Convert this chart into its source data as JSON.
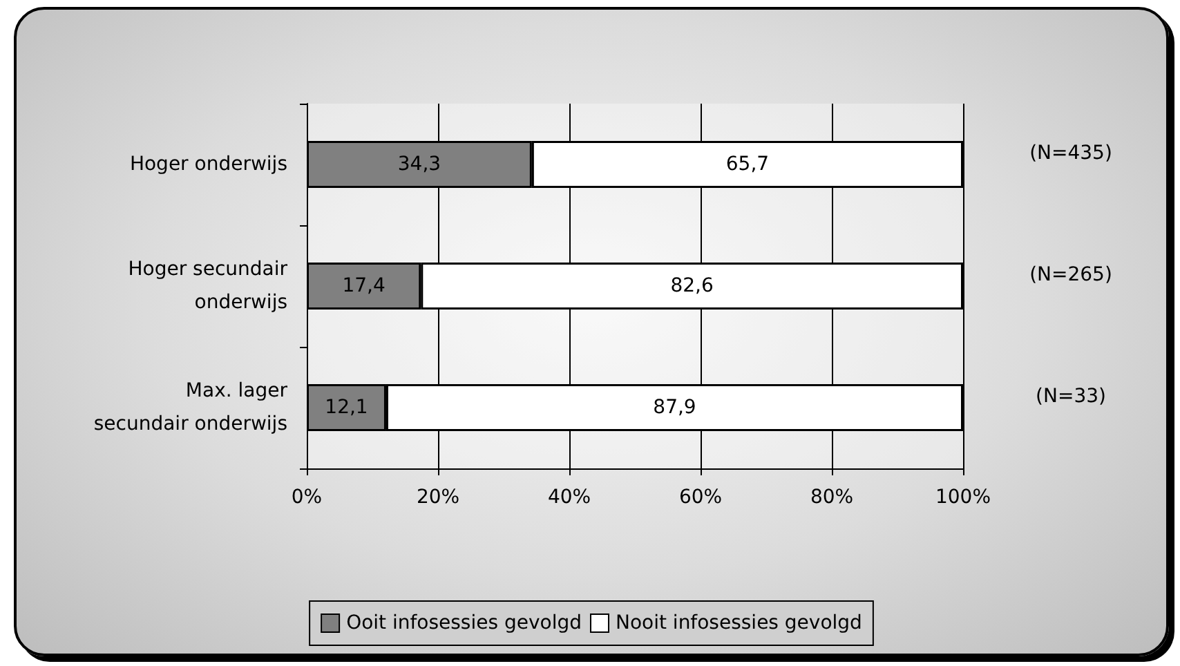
{
  "chart_data": {
    "type": "bar",
    "orientation": "horizontal",
    "stacked": true,
    "categories": [
      "Hoger onderwijs",
      "Hoger secundair onderwijs",
      "Max. lager secundair onderwijs"
    ],
    "series": [
      {
        "name": "Ooit infosessies gevolgd",
        "color": "#808080",
        "values": [
          34.3,
          17.4,
          12.1
        ],
        "value_labels": [
          "34,3",
          "17,4",
          "12,1"
        ]
      },
      {
        "name": "Nooit infosessies gevolgd",
        "color": "#ffffff",
        "values": [
          65.7,
          82.6,
          87.9
        ],
        "value_labels": [
          "65,7",
          "82,6",
          "87,9"
        ]
      }
    ],
    "xlim": [
      0,
      100
    ],
    "xticks": [
      {
        "value": 0,
        "label": "0%"
      },
      {
        "value": 20,
        "label": "20%"
      },
      {
        "value": 40,
        "label": "40%"
      },
      {
        "value": 60,
        "label": "60%"
      },
      {
        "value": 80,
        "label": "80%"
      },
      {
        "value": 100,
        "label": "100%"
      }
    ],
    "grid": "x",
    "legend": "bottom",
    "annotations": [
      "(N=435)",
      "(N=265)",
      "(N=33)"
    ]
  }
}
